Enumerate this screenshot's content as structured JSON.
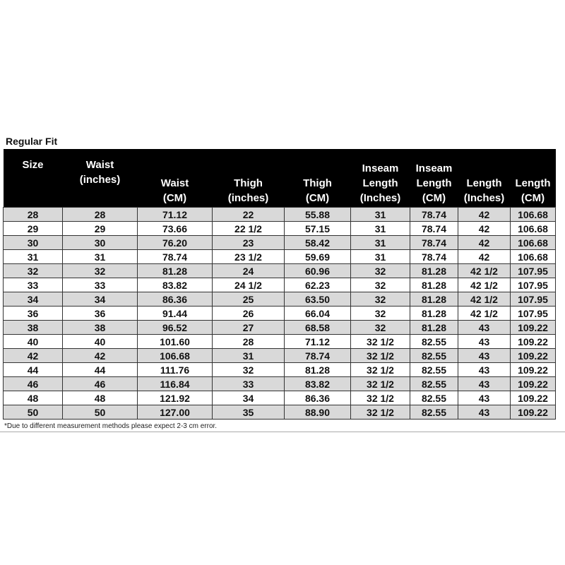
{
  "title": "Regular Fit",
  "headers": [
    [
      "Size"
    ],
    [
      "Waist",
      "(inches)"
    ],
    [
      "Waist",
      "(CM)"
    ],
    [
      "Thigh",
      "(inches)"
    ],
    [
      "Thigh",
      "(CM)"
    ],
    [
      "Inseam",
      "Length",
      "(Inches)"
    ],
    [
      "Inseam",
      "Length",
      "(CM)"
    ],
    [
      "Length",
      "(Inches)"
    ],
    [
      "Length",
      "(CM)"
    ]
  ],
  "rows": [
    [
      "28",
      "28",
      "71.12",
      "22",
      "55.88",
      "31",
      "78.74",
      "42",
      "106.68"
    ],
    [
      "29",
      "29",
      "73.66",
      "22 1/2",
      "57.15",
      "31",
      "78.74",
      "42",
      "106.68"
    ],
    [
      "30",
      "30",
      "76.20",
      "23",
      "58.42",
      "31",
      "78.74",
      "42",
      "106.68"
    ],
    [
      "31",
      "31",
      "78.74",
      "23 1/2",
      "59.69",
      "31",
      "78.74",
      "42",
      "106.68"
    ],
    [
      "32",
      "32",
      "81.28",
      "24",
      "60.96",
      "32",
      "81.28",
      "42 1/2",
      "107.95"
    ],
    [
      "33",
      "33",
      "83.82",
      "24 1/2",
      "62.23",
      "32",
      "81.28",
      "42 1/2",
      "107.95"
    ],
    [
      "34",
      "34",
      "86.36",
      "25",
      "63.50",
      "32",
      "81.28",
      "42 1/2",
      "107.95"
    ],
    [
      "36",
      "36",
      "91.44",
      "26",
      "66.04",
      "32",
      "81.28",
      "42 1/2",
      "107.95"
    ],
    [
      "38",
      "38",
      "96.52",
      "27",
      "68.58",
      "32",
      "81.28",
      "43",
      "109.22"
    ],
    [
      "40",
      "40",
      "101.60",
      "28",
      "71.12",
      "32 1/2",
      "82.55",
      "43",
      "109.22"
    ],
    [
      "42",
      "42",
      "106.68",
      "31",
      "78.74",
      "32 1/2",
      "82.55",
      "43",
      "109.22"
    ],
    [
      "44",
      "44",
      "111.76",
      "32",
      "81.28",
      "32 1/2",
      "82.55",
      "43",
      "109.22"
    ],
    [
      "46",
      "46",
      "116.84",
      "33",
      "83.82",
      "32 1/2",
      "82.55",
      "43",
      "109.22"
    ],
    [
      "48",
      "48",
      "121.92",
      "34",
      "86.36",
      "32 1/2",
      "82.55",
      "43",
      "109.22"
    ],
    [
      "50",
      "50",
      "127.00",
      "35",
      "88.90",
      "32 1/2",
      "82.55",
      "43",
      "109.22"
    ]
  ],
  "note": "*Due to different measurement methods please expect 2-3 cm error.",
  "colors": {
    "header_bg": "#000000",
    "header_text": "#ffffff",
    "stripe": "#d9d9d9"
  }
}
